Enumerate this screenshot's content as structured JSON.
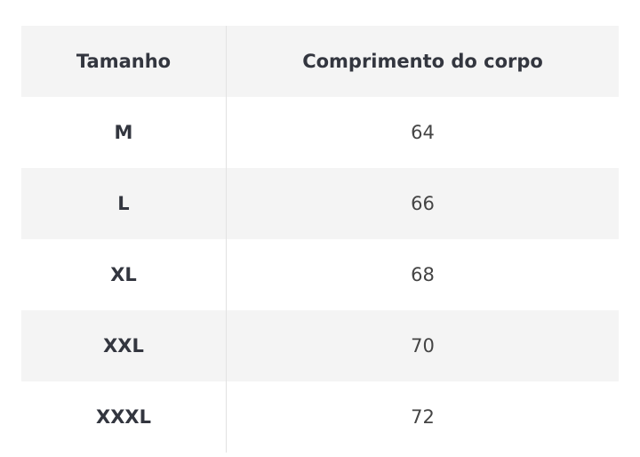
{
  "headers": [
    "Tamanho",
    "Comprimento do corpo"
  ],
  "rows": [
    [
      "M",
      "64"
    ],
    [
      "L",
      "66"
    ],
    [
      "XL",
      "68"
    ],
    [
      "XXL",
      "70"
    ],
    [
      "XXXL",
      "72"
    ]
  ]
}
